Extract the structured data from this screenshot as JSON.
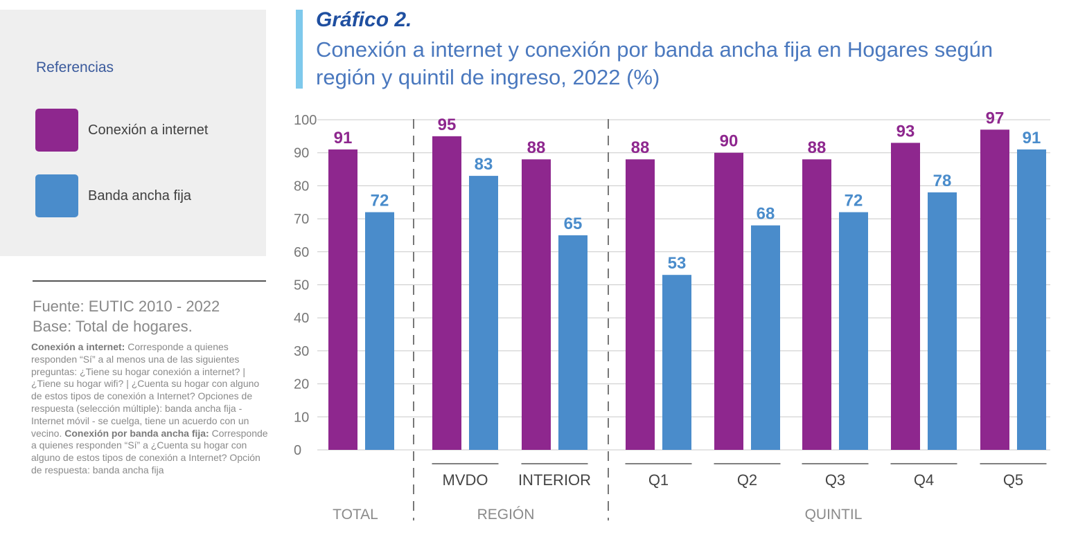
{
  "legend": {
    "title": "Referencias",
    "items": [
      {
        "label": "Conexión a internet",
        "color": "#8e278e"
      },
      {
        "label": "Banda ancha fija",
        "color": "#4a8ccb"
      }
    ]
  },
  "source": {
    "line1": "Fuente: EUTIC 2010 - 2022",
    "line2": "Base: Total de hogares."
  },
  "notes": {
    "def1_term": "Conexión a internet:",
    "def1_text": " Corresponde a quienes responden “Sí” a al menos una de las siguientes preguntas: ¿Tiene su hogar conexión a internet? | ¿Tiene su hogar wifi? | ¿Cuenta su hogar con alguno de estos tipos de conexión a Internet? Opciones de respuesta (selección múltiple): banda ancha fija - Internet móvil - se cuelga, tiene un acuerdo con un vecino. ",
    "def2_term": "Conexión por banda ancha fija:",
    "def2_text": " Corresponde a quienes responden “Sí” a ¿Cuenta su hogar con alguno de estos tipos de conexión a Internet? Opción de respuesta: banda ancha fija"
  },
  "chart_data": {
    "type": "bar",
    "title": "Gráfico 2.",
    "subtitle": "Conexión a internet y conexión por banda ancha fija en Hogares según región y quintil de ingreso, 2022 (%)",
    "categories": [
      "",
      "MVDO",
      "INTERIOR",
      "Q1",
      "Q2",
      "Q3",
      "Q4",
      "Q5"
    ],
    "groups": [
      {
        "label": "TOTAL",
        "categories": [
          ""
        ]
      },
      {
        "label": "REGIÓN",
        "categories": [
          "MVDO",
          "INTERIOR"
        ]
      },
      {
        "label": "QUINTIL",
        "categories": [
          "Q1",
          "Q2",
          "Q3",
          "Q4",
          "Q5"
        ]
      }
    ],
    "series": [
      {
        "name": "Conexión a internet",
        "color": "#8e278e",
        "values": [
          91,
          95,
          88,
          88,
          90,
          88,
          93,
          97
        ]
      },
      {
        "name": "Banda ancha fija",
        "color": "#4a8ccb",
        "values": [
          72,
          83,
          65,
          53,
          68,
          72,
          78,
          91
        ]
      }
    ],
    "y_ticks": [
      0,
      10,
      20,
      30,
      40,
      50,
      60,
      70,
      80,
      90,
      100
    ],
    "ylim": [
      0,
      100
    ],
    "grid": true,
    "legend": "left"
  }
}
